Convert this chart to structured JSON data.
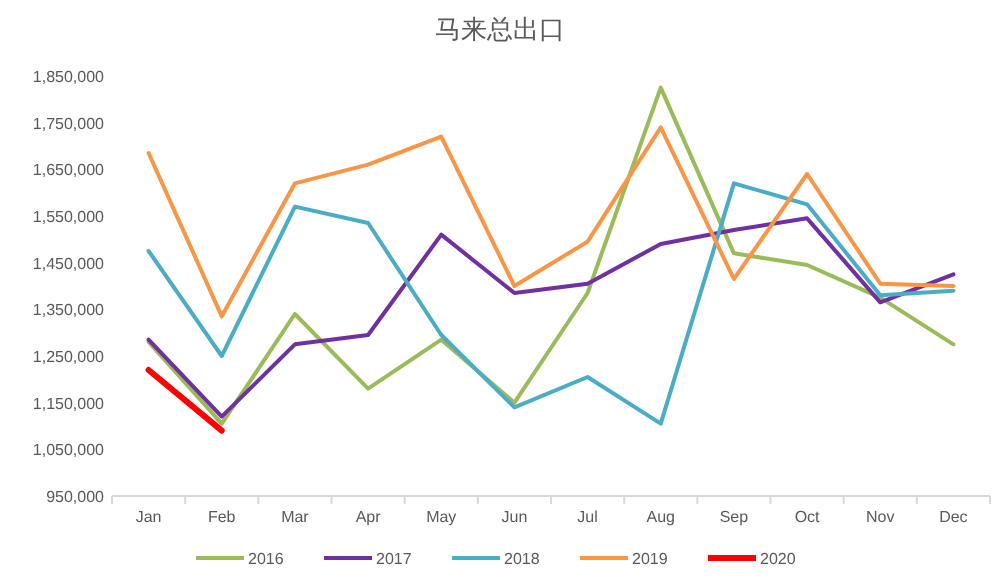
{
  "chart_data": {
    "type": "line",
    "title": "马来总出口",
    "categories": [
      "Jan",
      "Feb",
      "Mar",
      "Apr",
      "May",
      "Jun",
      "Jul",
      "Aug",
      "Sep",
      "Oct",
      "Nov",
      "Dec"
    ],
    "series": [
      {
        "name": "2016",
        "color": "#9bbb59",
        "values": [
          1280000,
          1105000,
          1340000,
          1180000,
          1285000,
          1150000,
          1385000,
          1825000,
          1470000,
          1445000,
          1375000,
          1275000
        ]
      },
      {
        "name": "2017",
        "color": "#7030a0",
        "values": [
          1285000,
          1120000,
          1275000,
          1295000,
          1510000,
          1385000,
          1405000,
          1490000,
          1520000,
          1545000,
          1365000,
          1425000
        ]
      },
      {
        "name": "2018",
        "color": "#4bacc6",
        "values": [
          1475000,
          1250000,
          1570000,
          1535000,
          1295000,
          1140000,
          1205000,
          1105000,
          1620000,
          1575000,
          1380000,
          1390000
        ]
      },
      {
        "name": "2019",
        "color": "#f79646",
        "values": [
          1685000,
          1335000,
          1620000,
          1660000,
          1720000,
          1400000,
          1495000,
          1740000,
          1415000,
          1640000,
          1405000,
          1400000
        ]
      },
      {
        "name": "2020",
        "color": "#ff0000",
        "values": [
          1220000,
          1090000,
          null,
          null,
          null,
          null,
          null,
          null,
          null,
          null,
          null,
          null
        ]
      }
    ],
    "ylim": [
      950000,
      1850000
    ],
    "yticks": [
      {
        "value": 950000,
        "label": "950,000"
      },
      {
        "value": 1050000,
        "label": "1,050,000"
      },
      {
        "value": 1150000,
        "label": "1,150,000"
      },
      {
        "value": 1250000,
        "label": "1,250,000"
      },
      {
        "value": 1350000,
        "label": "1,350,000"
      },
      {
        "value": 1450000,
        "label": "1,450,000"
      },
      {
        "value": 1550000,
        "label": "1,550,000"
      },
      {
        "value": 1650000,
        "label": "1,650,000"
      },
      {
        "value": 1750000,
        "label": "1,750,000"
      },
      {
        "value": 1850000,
        "label": "1,850,000"
      }
    ],
    "grid": false,
    "legend": "bottom",
    "marker": "none",
    "line_style": "solid"
  }
}
